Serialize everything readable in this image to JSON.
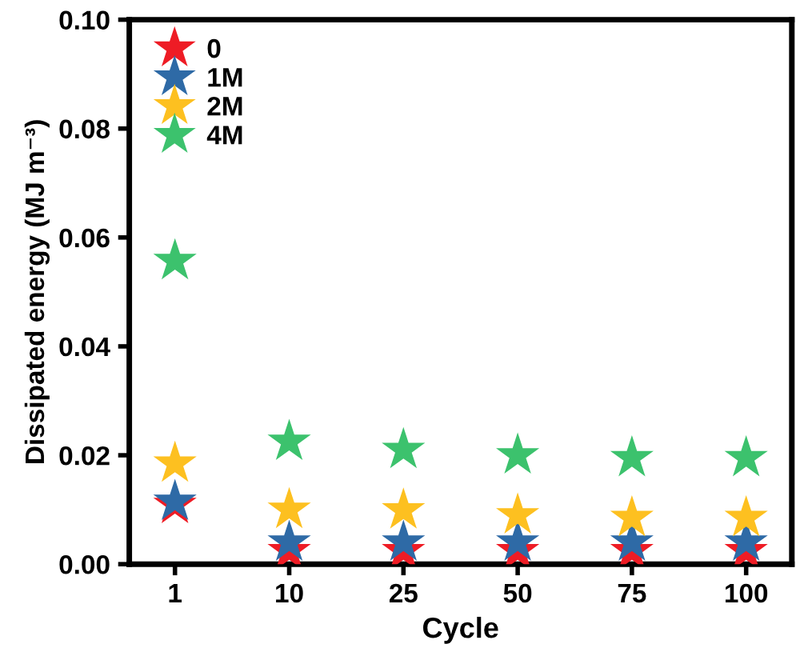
{
  "chart_data": {
    "type": "scatter",
    "xlabel": "Cycle",
    "ylabel": "Dissipated energy (MJ m⁻³)",
    "categories": [
      "1",
      "10",
      "25",
      "50",
      "75",
      "100"
    ],
    "series": [
      {
        "name": "0",
        "color": "#ee1c25",
        "values": [
          0.0109,
          0.0024,
          0.0024,
          0.0024,
          0.0024,
          0.0024
        ]
      },
      {
        "name": "1M",
        "color": "#2e6aa6",
        "values": [
          0.0115,
          0.004,
          0.004,
          0.004,
          0.004,
          0.004
        ]
      },
      {
        "name": "2M",
        "color": "#fdc020",
        "values": [
          0.0185,
          0.01,
          0.0099,
          0.009,
          0.0085,
          0.0085
        ]
      },
      {
        "name": "4M",
        "color": "#3cc26d",
        "values": [
          0.0557,
          0.0225,
          0.021,
          0.02,
          0.0195,
          0.0195
        ]
      }
    ],
    "ylim": [
      0,
      0.1
    ],
    "yticks": [
      {
        "value": 0,
        "label": "0.00"
      },
      {
        "value": 0.02,
        "label": "0.02"
      },
      {
        "value": 0.04,
        "label": "0.04"
      },
      {
        "value": 0.06,
        "label": "0.06"
      },
      {
        "value": 0.08,
        "label": "0.08"
      },
      {
        "value": 0.1,
        "label": "0.10"
      }
    ],
    "marker": "star",
    "legend": "top left",
    "grid": false
  }
}
